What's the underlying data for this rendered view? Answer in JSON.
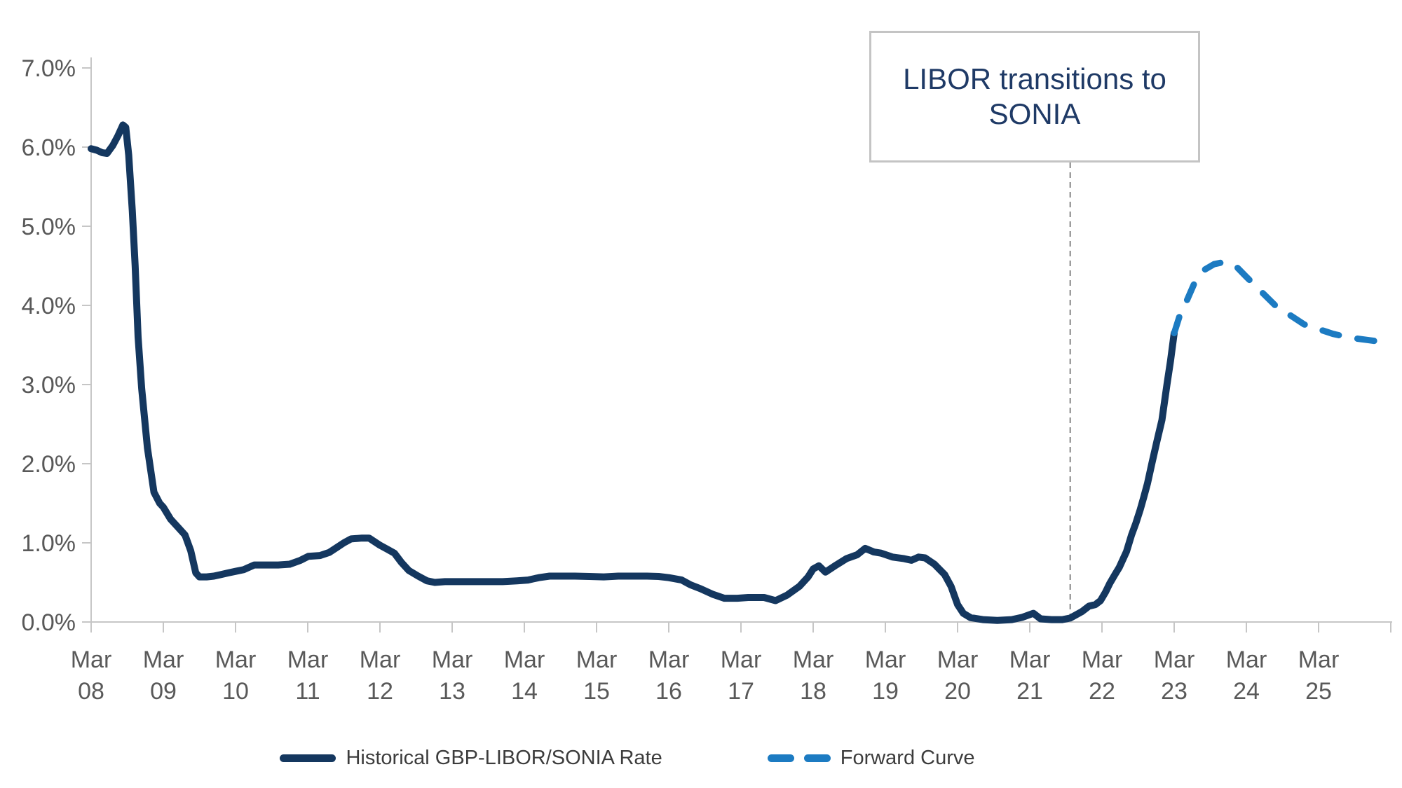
{
  "chart_data": {
    "type": "line",
    "title": "",
    "grid": "off",
    "legend_position": "bottom-center",
    "background": "#ffffff",
    "y_axis": {
      "min": 0,
      "max": 7,
      "tick_step": 1,
      "tick_labels": [
        "0.0%",
        "1.0%",
        "2.0%",
        "3.0%",
        "4.0%",
        "5.0%",
        "6.0%",
        "7.0%"
      ]
    },
    "x_axis": {
      "unit": "year",
      "first_year": 8,
      "last_tick_year": 26,
      "labels": [
        {
          "year": 8,
          "top": "Mar",
          "bottom": "08"
        },
        {
          "year": 9,
          "top": "Mar",
          "bottom": "09"
        },
        {
          "year": 10,
          "top": "Mar",
          "bottom": "10"
        },
        {
          "year": 11,
          "top": "Mar",
          "bottom": "11"
        },
        {
          "year": 12,
          "top": "Mar",
          "bottom": "12"
        },
        {
          "year": 13,
          "top": "Mar",
          "bottom": "13"
        },
        {
          "year": 14,
          "top": "Mar",
          "bottom": "14"
        },
        {
          "year": 15,
          "top": "Mar",
          "bottom": "15"
        },
        {
          "year": 16,
          "top": "Mar",
          "bottom": "16"
        },
        {
          "year": 17,
          "top": "Mar",
          "bottom": "17"
        },
        {
          "year": 18,
          "top": "Mar",
          "bottom": "18"
        },
        {
          "year": 19,
          "top": "Mar",
          "bottom": "19"
        },
        {
          "year": 20,
          "top": "Mar",
          "bottom": "20"
        },
        {
          "year": 21,
          "top": "Mar",
          "bottom": "21"
        },
        {
          "year": 22,
          "top": "Mar",
          "bottom": "22"
        },
        {
          "year": 23,
          "top": "Mar",
          "bottom": "23"
        },
        {
          "year": 24,
          "top": "Mar",
          "bottom": "24"
        },
        {
          "year": 25,
          "top": "Mar",
          "bottom": "25"
        }
      ]
    },
    "series": [
      {
        "name": "Historical GBP-LIBOR/SONIA Rate",
        "line_style": "solid",
        "color": "#14375f",
        "points": [
          [
            8.0,
            5.98
          ],
          [
            8.08,
            5.96
          ],
          [
            8.15,
            5.93
          ],
          [
            8.22,
            5.92
          ],
          [
            8.3,
            6.02
          ],
          [
            8.37,
            6.14
          ],
          [
            8.44,
            6.28
          ],
          [
            8.48,
            6.25
          ],
          [
            8.52,
            5.9
          ],
          [
            8.57,
            5.2
          ],
          [
            8.61,
            4.5
          ],
          [
            8.65,
            3.6
          ],
          [
            8.7,
            2.95
          ],
          [
            8.78,
            2.2
          ],
          [
            8.87,
            1.64
          ],
          [
            8.95,
            1.5
          ],
          [
            9.0,
            1.45
          ],
          [
            9.1,
            1.3
          ],
          [
            9.2,
            1.2
          ],
          [
            9.3,
            1.1
          ],
          [
            9.38,
            0.9
          ],
          [
            9.45,
            0.62
          ],
          [
            9.5,
            0.57
          ],
          [
            9.6,
            0.57
          ],
          [
            9.7,
            0.58
          ],
          [
            9.8,
            0.6
          ],
          [
            9.9,
            0.62
          ],
          [
            10.0,
            0.64
          ],
          [
            10.11,
            0.66
          ],
          [
            10.26,
            0.72
          ],
          [
            10.4,
            0.72
          ],
          [
            10.59,
            0.72
          ],
          [
            10.75,
            0.73
          ],
          [
            10.9,
            0.78
          ],
          [
            11.01,
            0.83
          ],
          [
            11.17,
            0.84
          ],
          [
            11.3,
            0.88
          ],
          [
            11.4,
            0.94
          ],
          [
            11.5,
            1.0
          ],
          [
            11.6,
            1.05
          ],
          [
            11.75,
            1.06
          ],
          [
            11.85,
            1.06
          ],
          [
            12.0,
            0.97
          ],
          [
            12.1,
            0.92
          ],
          [
            12.2,
            0.87
          ],
          [
            12.3,
            0.75
          ],
          [
            12.4,
            0.65
          ],
          [
            12.53,
            0.58
          ],
          [
            12.65,
            0.52
          ],
          [
            12.76,
            0.5
          ],
          [
            12.9,
            0.51
          ],
          [
            13.1,
            0.51
          ],
          [
            13.3,
            0.51
          ],
          [
            13.5,
            0.51
          ],
          [
            13.7,
            0.51
          ],
          [
            13.9,
            0.52
          ],
          [
            14.05,
            0.53
          ],
          [
            14.2,
            0.56
          ],
          [
            14.35,
            0.58
          ],
          [
            14.5,
            0.58
          ],
          [
            14.7,
            0.58
          ],
          [
            14.9,
            0.575
          ],
          [
            15.1,
            0.57
          ],
          [
            15.3,
            0.58
          ],
          [
            15.5,
            0.58
          ],
          [
            15.7,
            0.58
          ],
          [
            15.86,
            0.575
          ],
          [
            16.0,
            0.56
          ],
          [
            16.18,
            0.53
          ],
          [
            16.3,
            0.47
          ],
          [
            16.44,
            0.42
          ],
          [
            16.61,
            0.35
          ],
          [
            16.77,
            0.3
          ],
          [
            16.95,
            0.3
          ],
          [
            17.1,
            0.31
          ],
          [
            17.32,
            0.31
          ],
          [
            17.48,
            0.27
          ],
          [
            17.64,
            0.34
          ],
          [
            17.81,
            0.45
          ],
          [
            17.93,
            0.57
          ],
          [
            18.0,
            0.67
          ],
          [
            18.08,
            0.71
          ],
          [
            18.17,
            0.63
          ],
          [
            18.32,
            0.72
          ],
          [
            18.46,
            0.8
          ],
          [
            18.61,
            0.85
          ],
          [
            18.72,
            0.93
          ],
          [
            18.84,
            0.885
          ],
          [
            18.94,
            0.87
          ],
          [
            19.1,
            0.82
          ],
          [
            19.26,
            0.8
          ],
          [
            19.36,
            0.78
          ],
          [
            19.46,
            0.82
          ],
          [
            19.55,
            0.81
          ],
          [
            19.68,
            0.73
          ],
          [
            19.82,
            0.6
          ],
          [
            19.91,
            0.45
          ],
          [
            20.0,
            0.22
          ],
          [
            20.08,
            0.11
          ],
          [
            20.18,
            0.055
          ],
          [
            20.35,
            0.03
          ],
          [
            20.55,
            0.02
          ],
          [
            20.75,
            0.03
          ],
          [
            20.9,
            0.06
          ],
          [
            21.05,
            0.11
          ],
          [
            21.15,
            0.04
          ],
          [
            21.3,
            0.03
          ],
          [
            21.45,
            0.03
          ],
          [
            21.56,
            0.05
          ],
          [
            21.72,
            0.13
          ],
          [
            21.82,
            0.2
          ],
          [
            21.91,
            0.22
          ],
          [
            21.98,
            0.27
          ],
          [
            22.05,
            0.38
          ],
          [
            22.11,
            0.49
          ],
          [
            22.18,
            0.6
          ],
          [
            22.24,
            0.69
          ],
          [
            22.34,
            0.89
          ],
          [
            22.41,
            1.1
          ],
          [
            22.47,
            1.25
          ],
          [
            22.53,
            1.42
          ],
          [
            22.58,
            1.58
          ],
          [
            22.63,
            1.75
          ],
          [
            22.69,
            2.0
          ],
          [
            22.76,
            2.28
          ],
          [
            22.83,
            2.55
          ],
          [
            22.9,
            3.0
          ],
          [
            22.95,
            3.3
          ],
          [
            23.0,
            3.65
          ]
        ]
      },
      {
        "name": "Forward Curve",
        "line_style": "dashed",
        "color": "#1c7bc2",
        "points": [
          [
            23.0,
            3.65
          ],
          [
            23.08,
            3.88
          ],
          [
            23.17,
            4.05
          ],
          [
            23.28,
            4.28
          ],
          [
            23.42,
            4.45
          ],
          [
            23.55,
            4.52
          ],
          [
            23.7,
            4.55
          ],
          [
            23.85,
            4.5
          ],
          [
            24.0,
            4.36
          ],
          [
            24.2,
            4.18
          ],
          [
            24.4,
            4.0
          ],
          [
            24.6,
            3.88
          ],
          [
            24.8,
            3.76
          ],
          [
            25.0,
            3.7
          ],
          [
            25.2,
            3.64
          ],
          [
            25.45,
            3.59
          ],
          [
            25.7,
            3.56
          ],
          [
            25.95,
            3.53
          ]
        ]
      }
    ],
    "annotation": {
      "line1": "LIBOR transitions to",
      "line2": "SONIA",
      "marker_year": 21.56
    }
  },
  "colors": {
    "axis_line": "#c6c6c6",
    "tick_mark": "#c6c6c6",
    "axis_label": "#595959",
    "legend_text": "#3c3c3c",
    "annotation_text": "#1f3a66",
    "annotation_border": "#c4c4c4",
    "divider_line": "#858585",
    "historical": "#14375f",
    "forward": "#1c7bc2"
  }
}
